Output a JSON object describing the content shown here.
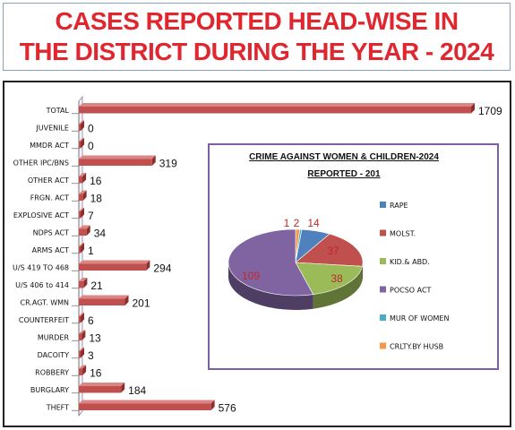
{
  "header": {
    "line1": "CASES REPORTED HEAD-WISE IN",
    "line2": "THE DISTRICT  DURING THE YEAR - 2024"
  },
  "colors": {
    "title": "#e0262f",
    "bar": "#c0504d",
    "bar_dark": "#8b2f2d"
  },
  "chart_data": [
    {
      "type": "bar",
      "orientation": "horizontal",
      "categories": [
        "TOTAL",
        "JUVENILE",
        "MMDR ACT",
        "OTHER IPC/BNS",
        "OTHER ACT",
        "FRGN. ACT",
        "EXPLOSIVE ACT",
        "NDPS ACT",
        "ARMS ACT",
        "U/S 419 TO 468",
        "U/S 406 to 414",
        "CR.AGT. WMN",
        "COUNTERFEIT",
        "MURDER",
        "DACOITY",
        "ROBBERY",
        "BURGLARY",
        "THEFT"
      ],
      "values": [
        1709,
        0,
        0,
        319,
        16,
        18,
        7,
        34,
        1,
        294,
        21,
        201,
        6,
        13,
        3,
        16,
        184,
        576
      ],
      "xlim": [
        0,
        1709
      ],
      "grid": false,
      "legend": "none"
    },
    {
      "type": "pie",
      "title": "CRIME AGAINST WOMEN & CHILDREN-2024",
      "subtitle": "REPORTED - 201",
      "categories": [
        "RAPE",
        "MOLST.",
        "KID.& ABD.",
        "POCSO ACT",
        "MUR OF WOMEN",
        "CRLTY.BY HUSB"
      ],
      "values": [
        14,
        37,
        38,
        109,
        1,
        2
      ],
      "colors": [
        "#4f81bd",
        "#c0504d",
        "#9bbb59",
        "#8064a2",
        "#4bacc6",
        "#f79646"
      ],
      "legend": "right"
    }
  ]
}
